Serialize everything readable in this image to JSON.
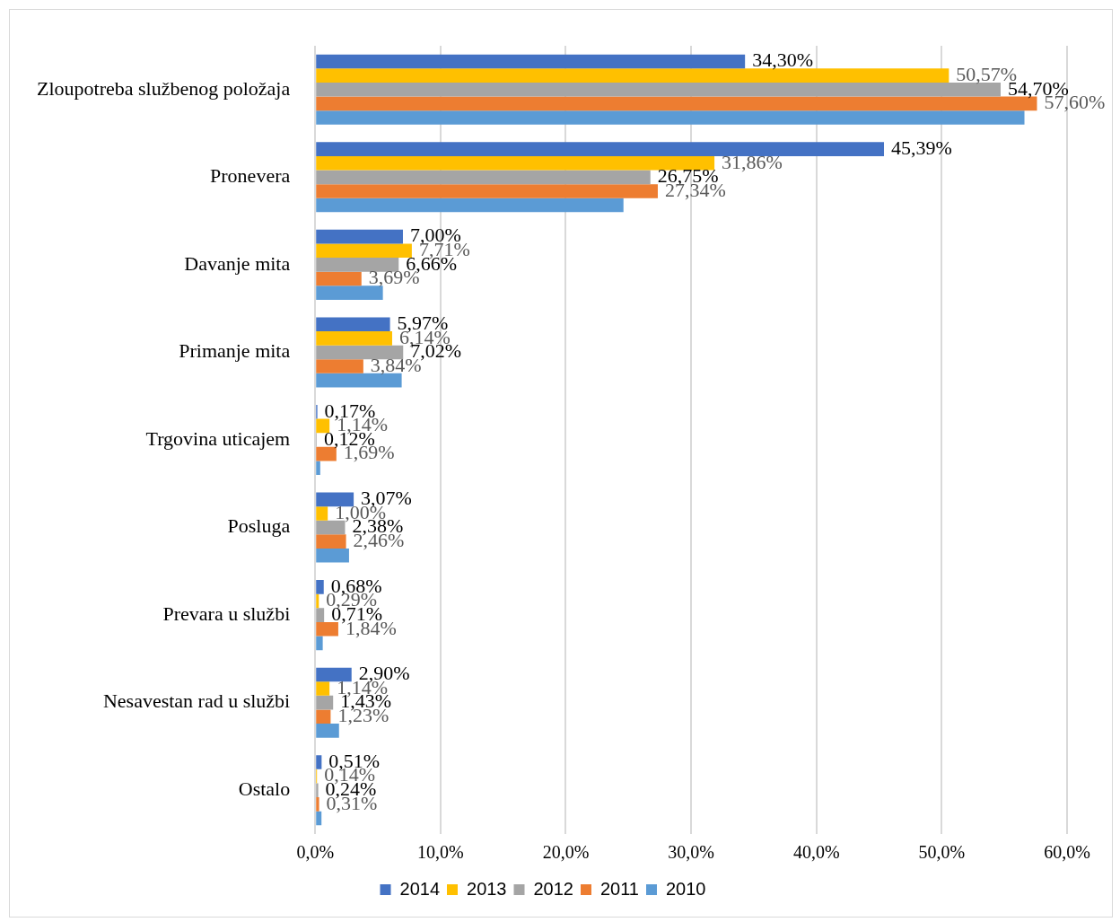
{
  "chart_data": {
    "type": "bar",
    "orientation": "horizontal",
    "categories": [
      "Zloupotreba službenog položaja",
      "Pronevera",
      "Davanje mita",
      "Primanje mita",
      "Trgovina uticajem",
      "Posluga",
      "Prevara u službi",
      "Nesavestan rad u službi",
      "Ostalo"
    ],
    "series": [
      {
        "name": "2014",
        "color": "#4472c4",
        "values": [
          34.3,
          45.39,
          7.0,
          5.97,
          0.17,
          3.07,
          0.68,
          2.9,
          0.51
        ],
        "value_labels": [
          "34,30%",
          "45,39%",
          "7,00%",
          "5,97%",
          "0,17%",
          "3,07%",
          "0,68%",
          "2,90%",
          "0,51%"
        ]
      },
      {
        "name": "2013",
        "color": "#ffc000",
        "values": [
          50.57,
          31.86,
          7.71,
          6.14,
          1.14,
          1.0,
          0.29,
          1.14,
          0.14
        ],
        "value_labels": [
          "50,57%",
          "31,86%",
          "7,71%",
          "6,14%",
          "1,14%",
          "1,00%",
          "0,29%",
          "1,14%",
          "0,14%"
        ]
      },
      {
        "name": "2012",
        "color": "#a5a5a5",
        "values": [
          54.7,
          26.75,
          6.66,
          7.02,
          0.12,
          2.38,
          0.71,
          1.43,
          0.24
        ],
        "value_labels": [
          "54,70%",
          "26,75%",
          "6,66%",
          "7,02%",
          "0,12%",
          "2,38%",
          "0,71%",
          "1,43%",
          "0,24%"
        ]
      },
      {
        "name": "2011",
        "color": "#ed7d31",
        "values": [
          57.6,
          27.34,
          3.69,
          3.84,
          1.69,
          2.46,
          1.84,
          1.23,
          0.31
        ],
        "value_labels": [
          "57,60%",
          "27,34%",
          "3,69%",
          "3,84%",
          "1,69%",
          "2,46%",
          "1,84%",
          "1,23%",
          "0,31%"
        ]
      },
      {
        "name": "2010",
        "color": "#5b9bd5",
        "values": [
          56.6,
          24.6,
          5.4,
          6.9,
          0.4,
          2.7,
          0.6,
          1.9,
          0.5
        ]
      }
    ],
    "xlim": [
      0,
      60
    ],
    "xticks": [
      {
        "value": 0,
        "label": "0,0%"
      },
      {
        "value": 10,
        "label": "10,0%"
      },
      {
        "value": 20,
        "label": "20,0%"
      },
      {
        "value": 30,
        "label": "30,0%"
      },
      {
        "value": 40,
        "label": "40,0%"
      },
      {
        "value": 50,
        "label": "50,0%"
      },
      {
        "value": 60,
        "label": "60,0%"
      }
    ],
    "grid": "x",
    "legend": "bottom"
  }
}
